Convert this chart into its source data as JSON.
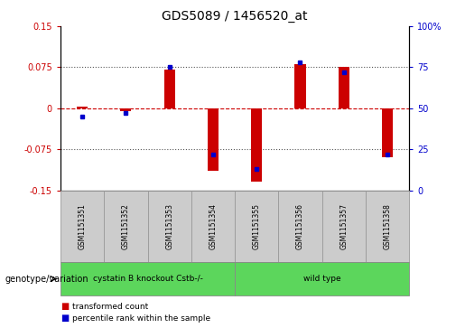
{
  "title": "GDS5089 / 1456520_at",
  "samples": [
    "GSM1151351",
    "GSM1151352",
    "GSM1151353",
    "GSM1151354",
    "GSM1151355",
    "GSM1151356",
    "GSM1151357",
    "GSM1151358"
  ],
  "red_values": [
    0.003,
    -0.005,
    0.07,
    -0.115,
    -0.135,
    0.08,
    0.075,
    -0.09
  ],
  "blue_values": [
    45,
    47,
    75,
    22,
    13,
    78,
    72,
    22
  ],
  "ylim_left": [
    -0.15,
    0.15
  ],
  "ylim_right": [
    0,
    100
  ],
  "yticks_left": [
    -0.15,
    -0.075,
    0,
    0.075,
    0.15
  ],
  "yticks_right": [
    0,
    25,
    50,
    75,
    100
  ],
  "ytick_labels_left": [
    "-0.15",
    "-0.075",
    "0",
    "0.075",
    "0.15"
  ],
  "ytick_labels_right": [
    "0",
    "25",
    "50",
    "75",
    "100%"
  ],
  "group1_label": "cystatin B knockout Cstb-/-",
  "group2_label": "wild type",
  "group1_count": 4,
  "group2_count": 4,
  "genotype_label": "genotype/variation",
  "legend1_label": "transformed count",
  "legend2_label": "percentile rank within the sample",
  "red_color": "#CC0000",
  "blue_color": "#0000CC",
  "group_bg_color": "#5CD65C",
  "sample_box_color": "#CCCCCC",
  "bar_width": 0.25,
  "hline_zero_color": "#CC0000",
  "hline_dotted_color": "#555555"
}
